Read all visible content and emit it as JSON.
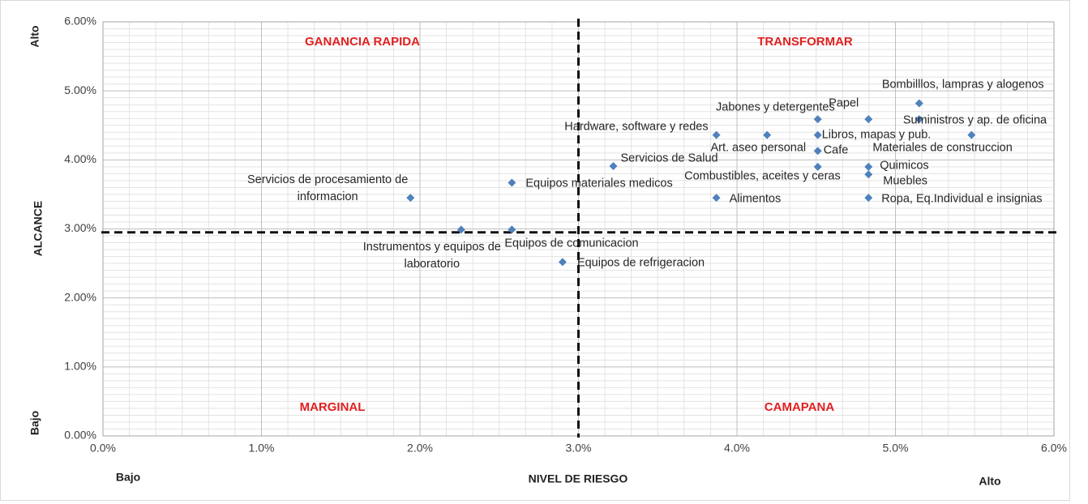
{
  "chart_data": {
    "type": "scatter",
    "x_label": "NIVEL DE RIESGO",
    "y_label": "ALCANCE",
    "x_low_label": "Bajo",
    "x_high_label": "Alto",
    "y_low_label": "Bajo",
    "y_high_label": "Alto",
    "quadrant_labels": [
      "GANANCIA RAPIDA",
      "TRANSFORMAR",
      "MARGINAL",
      "CAMAPANA"
    ],
    "xlim": [
      0,
      6
    ],
    "ylim": [
      0,
      6
    ],
    "xticks": [
      {
        "value": 0,
        "label": "0.0%"
      },
      {
        "value": 1,
        "label": "1.0%"
      },
      {
        "value": 2,
        "label": "2.0%"
      },
      {
        "value": 3,
        "label": "3.0%"
      },
      {
        "value": 4,
        "label": "4.0%"
      },
      {
        "value": 5,
        "label": "5.0%"
      },
      {
        "value": 6,
        "label": "6.0%"
      }
    ],
    "yticks": [
      {
        "value": 0,
        "label": "0.00%"
      },
      {
        "value": 1,
        "label": "1.00%"
      },
      {
        "value": 2,
        "label": "2.00%"
      },
      {
        "value": 3,
        "label": "3.00%"
      },
      {
        "value": 4,
        "label": "4.00%"
      },
      {
        "value": 5,
        "label": "5.00%"
      },
      {
        "value": 6,
        "label": "6.00%"
      }
    ],
    "grid": true,
    "minor_grid": {
      "x": 6,
      "y": 10
    },
    "reference_lines": {
      "x": 3.0,
      "y": 2.95
    },
    "series": [
      {
        "color": "#4f81bd",
        "x": [
          1.94,
          2.26,
          2.58,
          2.58,
          2.9,
          3.22,
          3.87,
          3.87,
          4.19,
          4.51,
          4.51,
          4.51,
          4.51,
          4.83,
          4.83,
          4.83,
          4.83,
          5.15,
          5.15,
          5.48
        ],
        "values": [
          3.45,
          2.99,
          2.99,
          3.67,
          2.52,
          3.91,
          4.36,
          3.45,
          4.36,
          4.59,
          4.36,
          4.13,
          3.9,
          4.59,
          3.9,
          3.79,
          3.45,
          4.82,
          4.59,
          4.36
        ],
        "point_labels": [
          "Servicios de procesamiento de\ninformacion",
          "Instrumentos y equipos de\nlaboratorio",
          "Equipos de comunicacion",
          "Equipos  materiales medicos",
          "Equipos  de refrigeracion",
          "Servicios de Salud",
          "Hardware, software y redes",
          "Alimentos",
          "Art. aseo personal",
          "Jabones y detergentes",
          "Libros, mapas y pub.",
          "Cafe",
          "Combustibles, aceites y ceras",
          "Papel",
          "Quimicos",
          "Muebles",
          "Ropa, Eq.Individual e insignias",
          "Bombilllos, lampras y alogenos",
          "Suministros y  ap. de oficina",
          "Materiales  de construccion"
        ]
      }
    ]
  }
}
